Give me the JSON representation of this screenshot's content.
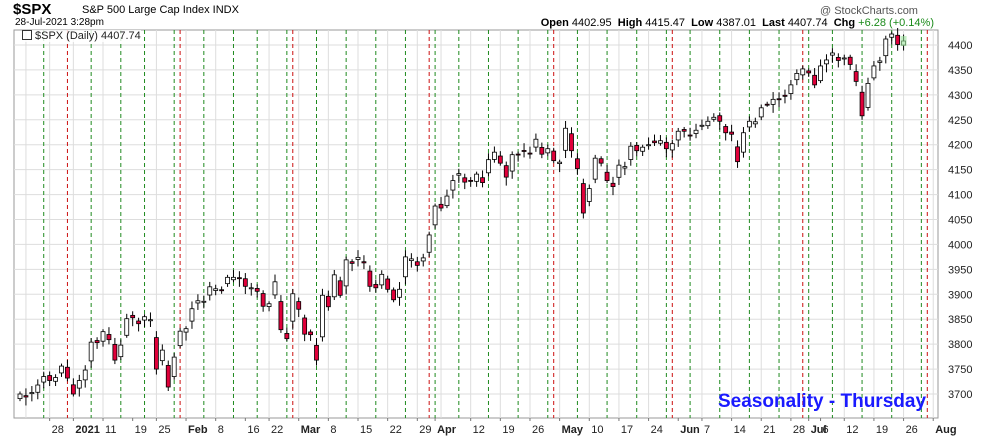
{
  "header": {
    "symbol": "$SPX",
    "name": "S&P 500 Large Cap Index INDX",
    "date": "28-Jul-2021 3:28pm",
    "credit": "@ StockCharts.com",
    "open_label": "Open",
    "open": "4402.95",
    "high_label": "High",
    "high": "4415.47",
    "low_label": "Low",
    "low": "4387.01",
    "last_label": "Last",
    "last": "4407.74",
    "chg_label": "Chg",
    "chg": "+6.28 (+0.14%)"
  },
  "legend": {
    "label": "$SPX (Daily) 4407.74"
  },
  "annotation": "Seasonality - Thursday",
  "colors": {
    "up": "#ffffff",
    "down": "#e0003a",
    "green_line": "#1f8a1f",
    "red_line": "#cc1111",
    "grid": "#dddddd"
  },
  "chart_data": {
    "type": "candlestick",
    "title": "$SPX (Daily) 4407.74",
    "ylim": [
      3660,
      4430
    ],
    "y_ticks": [
      3700,
      3750,
      3800,
      3850,
      3900,
      3950,
      4000,
      4050,
      4100,
      4150,
      4200,
      4250,
      4300,
      4350,
      4400
    ],
    "x_start": "2020-12-18",
    "x_ticks": [
      {
        "date": "2020-12-28",
        "label": "28"
      },
      {
        "date": "2021-01-04",
        "label": "2021"
      },
      {
        "date": "2021-01-11",
        "label": "11"
      },
      {
        "date": "2021-01-19",
        "label": "19"
      },
      {
        "date": "2021-01-25",
        "label": "25"
      },
      {
        "date": "2021-02-01",
        "label": "Feb"
      },
      {
        "date": "2021-02-08",
        "label": "8"
      },
      {
        "date": "2021-02-16",
        "label": "16"
      },
      {
        "date": "2021-02-22",
        "label": "22"
      },
      {
        "date": "2021-03-01",
        "label": "Mar"
      },
      {
        "date": "2021-03-08",
        "label": "8"
      },
      {
        "date": "2021-03-15",
        "label": "15"
      },
      {
        "date": "2021-03-22",
        "label": "22"
      },
      {
        "date": "2021-03-29",
        "label": "29"
      },
      {
        "date": "2021-04-01",
        "label": "Apr"
      },
      {
        "date": "2021-04-12",
        "label": "12"
      },
      {
        "date": "2021-04-19",
        "label": "19"
      },
      {
        "date": "2021-04-26",
        "label": "26"
      },
      {
        "date": "2021-05-03",
        "label": "May"
      },
      {
        "date": "2021-05-10",
        "label": "10"
      },
      {
        "date": "2021-05-17",
        "label": "17"
      },
      {
        "date": "2021-05-24",
        "label": "24"
      },
      {
        "date": "2021-06-01",
        "label": "Jun"
      },
      {
        "date": "2021-06-07",
        "label": "7"
      },
      {
        "date": "2021-06-14",
        "label": "14"
      },
      {
        "date": "2021-06-21",
        "label": "21"
      },
      {
        "date": "2021-06-28",
        "label": "28"
      },
      {
        "date": "2021-07-01",
        "label": "Jul"
      },
      {
        "date": "2021-07-06",
        "label": "6"
      },
      {
        "date": "2021-07-12",
        "label": "12"
      },
      {
        "date": "2021-07-19",
        "label": "19"
      },
      {
        "date": "2021-07-26",
        "label": "26"
      },
      {
        "date": "2021-08-02",
        "label": "Aug"
      }
    ],
    "closes": [
      3700,
      3694,
      3703,
      3718,
      3735,
      3727,
      3733,
      3756,
      3732,
      3700,
      3727,
      3748,
      3804,
      3803,
      3825,
      3809,
      3768,
      3798,
      3851,
      3853,
      3841,
      3855,
      3849,
      3750,
      3788,
      3714,
      3774,
      3826,
      3831,
      3871,
      3887,
      3886,
      3915,
      3911,
      3909,
      3934,
      3934,
      3932,
      3916,
      3913,
      3906,
      3876,
      3881,
      3925,
      3829,
      3811,
      3901,
      3870,
      3820,
      3819,
      3768,
      3898,
      3875,
      3939,
      3898,
      3969,
      3962,
      3974,
      3963,
      3916,
      3913,
      3940,
      3910,
      3889,
      3910,
      3975,
      3971,
      3958,
      3973,
      4019,
      4077,
      4073,
      4097,
      4128,
      4142,
      4125,
      4128,
      4141,
      4124,
      4170,
      4185,
      4163,
      4135,
      4180,
      4180,
      4187,
      4183,
      4211,
      4181,
      4192,
      4168,
      4165,
      4233,
      4188,
      4152,
      4063,
      4112,
      4173,
      4163,
      4128,
      4116,
      4159,
      4156,
      4197,
      4188,
      4195,
      4200,
      4204,
      4208,
      4192,
      4202,
      4227,
      4227,
      4219,
      4229,
      4239,
      4247,
      4255,
      4247,
      4224,
      4221,
      4166,
      4224,
      4247,
      4246,
      4274,
      4281,
      4291,
      4291,
      4297,
      4320,
      4343,
      4352,
      4344,
      4320,
      4358,
      4370,
      4384,
      4369,
      4374,
      4361,
      4327,
      4258,
      4323,
      4358,
      4368,
      4412,
      4422,
      4401,
      4408
    ]
  }
}
